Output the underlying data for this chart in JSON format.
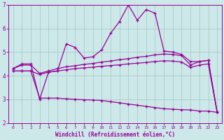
{
  "x": [
    0,
    1,
    2,
    3,
    4,
    5,
    6,
    7,
    8,
    9,
    10,
    11,
    12,
    13,
    14,
    15,
    16,
    17,
    18,
    19,
    20,
    21,
    22,
    23
  ],
  "line_wavy": [
    4.3,
    4.5,
    4.5,
    3.0,
    4.15,
    4.2,
    5.35,
    5.2,
    4.75,
    4.8,
    5.1,
    5.8,
    6.3,
    7.0,
    6.35,
    6.8,
    6.65,
    5.05,
    5.0,
    4.9,
    4.6,
    4.6,
    4.65,
    2.45
  ],
  "line_upper": [
    4.3,
    4.45,
    4.45,
    4.1,
    4.2,
    4.3,
    4.38,
    4.42,
    4.48,
    4.52,
    4.58,
    4.62,
    4.68,
    4.72,
    4.78,
    4.82,
    4.88,
    4.92,
    4.9,
    4.85,
    4.45,
    4.6,
    4.65,
    2.45
  ],
  "line_middle": [
    4.2,
    4.2,
    4.2,
    4.05,
    4.15,
    4.2,
    4.25,
    4.3,
    4.33,
    4.36,
    4.4,
    4.43,
    4.46,
    4.5,
    4.53,
    4.56,
    4.6,
    4.63,
    4.62,
    4.58,
    4.35,
    4.45,
    4.5,
    2.45
  ],
  "line_lower": [
    4.2,
    4.2,
    4.2,
    3.05,
    3.05,
    3.05,
    3.02,
    3.0,
    2.98,
    2.97,
    2.95,
    2.9,
    2.85,
    2.8,
    2.75,
    2.7,
    2.65,
    2.6,
    2.58,
    2.56,
    2.55,
    2.5,
    2.5,
    2.45
  ],
  "bg_color": "#cce8e8",
  "grid_color": "#aacccc",
  "line_color": "#990099",
  "xlabel": "Windchill (Refroidissement éolien,°C)",
  "xlim": [
    -0.5,
    23.5
  ],
  "ylim": [
    2,
    7
  ],
  "xticks": [
    0,
    1,
    2,
    3,
    4,
    5,
    6,
    7,
    8,
    9,
    10,
    11,
    12,
    13,
    14,
    15,
    16,
    17,
    18,
    19,
    20,
    21,
    22,
    23
  ],
  "yticks": [
    2,
    3,
    4,
    5,
    6,
    7
  ]
}
